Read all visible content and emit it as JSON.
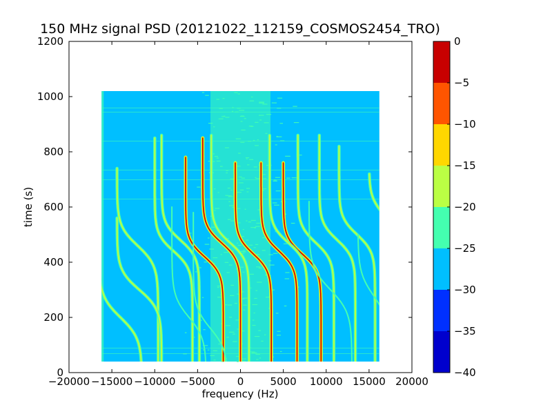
{
  "chart_data": {
    "type": "heatmap",
    "title": "150 MHz signal PSD (20121022_112159_COSMOS2454_TRO)",
    "xlabel": "frequency (Hz)",
    "ylabel": "time (s)",
    "xlim": [
      -20000,
      20000
    ],
    "ylim": [
      0,
      1200
    ],
    "xticks": [
      -20000,
      -15000,
      -10000,
      -5000,
      0,
      5000,
      10000,
      15000,
      20000
    ],
    "xtick_labels": [
      "−20000",
      "−15000",
      "−10000",
      "−5000",
      "0",
      "5000",
      "10000",
      "15000",
      "20000"
    ],
    "yticks": [
      0,
      200,
      400,
      600,
      800,
      1000,
      1200
    ],
    "ytick_labels": [
      "0",
      "200",
      "400",
      "600",
      "800",
      "1000",
      "1200"
    ],
    "data_extent": {
      "x": [
        -16200,
        16200
      ],
      "y": [
        40,
        1020
      ]
    },
    "grid": false,
    "colorbar": {
      "levels": [
        -40,
        -35,
        -30,
        -25,
        -20,
        -15,
        -10,
        -5,
        0
      ],
      "tick_labels": [
        "−40",
        "−35",
        "−30",
        "−25",
        "−20",
        "−15",
        "−10",
        "−5",
        "0"
      ],
      "colors": [
        "#0000cd",
        "#0030ff",
        "#00bfff",
        "#44ffb0",
        "#bbff44",
        "#ffd700",
        "#ff5500",
        "#c80000"
      ]
    },
    "background_level_color": "#00bfff",
    "signal_traces": [
      {
        "f0": -4200,
        "amp": 2200,
        "t0": 780,
        "t1": 40,
        "tc": 420,
        "k": 0.016,
        "level": "strong"
      },
      {
        "f0": -2200,
        "amp": 2200,
        "t0": 850,
        "t1": 40,
        "tc": 470,
        "k": 0.016,
        "level": "strong"
      },
      {
        "f0": 1500,
        "amp": 2100,
        "t0": 760,
        "t1": 40,
        "tc": 430,
        "k": 0.016,
        "level": "strong"
      },
      {
        "f0": 4500,
        "amp": 2100,
        "t0": 760,
        "t1": 40,
        "tc": 440,
        "k": 0.016,
        "level": "strong"
      },
      {
        "f0": 7200,
        "amp": 2200,
        "t0": 760,
        "t1": 40,
        "tc": 430,
        "k": 0.016,
        "level": "strong"
      },
      {
        "f0": -12000,
        "amp": 2400,
        "t0": 740,
        "t1": 40,
        "tc": 460,
        "k": 0.014,
        "level": "medium"
      },
      {
        "f0": -11800,
        "amp": 2600,
        "t0": 560,
        "t1": 40,
        "tc": 300,
        "k": 0.014,
        "level": "medium"
      },
      {
        "f0": -7800,
        "amp": 2200,
        "t0": 850,
        "t1": 40,
        "tc": 440,
        "k": 0.016,
        "level": "medium"
      },
      {
        "f0": -7000,
        "amp": 2200,
        "t0": 860,
        "t1": 40,
        "tc": 480,
        "k": 0.016,
        "level": "medium"
      },
      {
        "f0": -1200,
        "amp": 2200,
        "t0": 860,
        "t1": 40,
        "tc": 470,
        "k": 0.016,
        "level": "medium"
      },
      {
        "f0": 5600,
        "amp": 2200,
        "t0": 860,
        "t1": 40,
        "tc": 470,
        "k": 0.016,
        "level": "medium"
      },
      {
        "f0": 8800,
        "amp": 2100,
        "t0": 860,
        "t1": 40,
        "tc": 470,
        "k": 0.016,
        "level": "medium"
      },
      {
        "f0": 11300,
        "amp": 2100,
        "t0": 860,
        "t1": 40,
        "tc": 480,
        "k": 0.016,
        "level": "medium"
      },
      {
        "f0": 13600,
        "amp": 2100,
        "t0": 820,
        "t1": 40,
        "tc": 500,
        "k": 0.016,
        "level": "medium"
      },
      {
        "f0": 16500,
        "amp": 1500,
        "t0": 720,
        "t1": 400,
        "tc": 580,
        "k": 0.016,
        "level": "medium"
      },
      {
        "f0": -14000,
        "amp": 2500,
        "t0": 400,
        "t1": 40,
        "tc": 200,
        "k": 0.013,
        "level": "medium"
      },
      {
        "f0": -6000,
        "amp": 2000,
        "t0": 600,
        "t1": 40,
        "tc": 200,
        "k": 0.013,
        "level": "weak"
      },
      {
        "f0": -3500,
        "amp": 2000,
        "t0": 580,
        "t1": 40,
        "tc": 160,
        "k": 0.013,
        "level": "weak"
      },
      {
        "f0": 10500,
        "amp": 2500,
        "t0": 620,
        "t1": 40,
        "tc": 300,
        "k": 0.012,
        "level": "weak"
      },
      {
        "f0": 15500,
        "amp": 1800,
        "t0": 500,
        "t1": 60,
        "tc": 280,
        "k": 0.012,
        "level": "weak"
      }
    ]
  }
}
